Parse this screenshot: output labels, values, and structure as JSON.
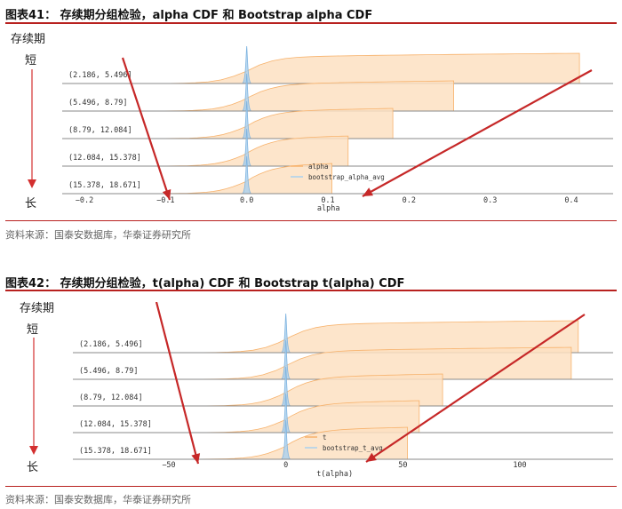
{
  "figures": [
    {
      "title": "图表41：  存续期分组检验，alpha CDF 和 Bootstrap alpha CDF",
      "source": "资料来源：国泰安数据库，华泰证券研究所",
      "side_top": "存续期",
      "side_short": "短",
      "side_long": "长"
    },
    {
      "title": "图表42：  存续期分组检验，t(alpha) CDF 和 Bootstrap t(alpha) CDF",
      "source": "资料来源：国泰安数据库，华泰证券研究所",
      "side_top": "存续期",
      "side_short": "短",
      "side_long": "长"
    }
  ],
  "colors": {
    "cdf_fill": "#fde0c2",
    "cdf_line": "#f7b26c",
    "bootstrap": "#a9d0ee",
    "arrow": "#c62828",
    "side_arrow": "#d32f2f",
    "rule": "#b8211f"
  },
  "chart_data": [
    {
      "type": "area",
      "xlabel": "alpha",
      "xlim": [
        -0.2,
        0.45
      ],
      "xticks": [
        -0.2,
        -0.1,
        0.0,
        0.1,
        0.2,
        0.3,
        0.4
      ],
      "xtick_labels": [
        "−0.2",
        "−0.1",
        "0.0",
        "0.1",
        "0.2",
        "0.3",
        "0.4"
      ],
      "groups": [
        {
          "label": "(2.186, 5.496]",
          "max": 0.41
        },
        {
          "label": "(5.496, 8.79]",
          "max": 0.255
        },
        {
          "label": "(8.79, 12.084]",
          "max": 0.18
        },
        {
          "label": "(12.084, 15.378]",
          "max": 0.125
        },
        {
          "label": "(15.378, 18.671]",
          "max": 0.105
        }
      ],
      "bootstrap_center": 0.0,
      "legend": [
        "alpha",
        "bootstrap_alpha_avg"
      ]
    },
    {
      "type": "area",
      "xlabel": "t(alpha)",
      "xlim": [
        -75,
        130
      ],
      "xticks": [
        -50,
        0,
        50,
        100
      ],
      "xtick_labels": [
        "−50",
        "0",
        "50",
        "100"
      ],
      "groups": [
        {
          "label": "(2.186, 5.496]",
          "max": 125
        },
        {
          "label": "(5.496, 8.79]",
          "max": 122
        },
        {
          "label": "(8.79, 12.084]",
          "max": 67
        },
        {
          "label": "(12.084, 15.378]",
          "max": 57
        },
        {
          "label": "(15.378, 18.671]",
          "max": 52
        }
      ],
      "bootstrap_center": 0,
      "legend": [
        "t",
        "bootstrap_t_avg"
      ]
    }
  ]
}
